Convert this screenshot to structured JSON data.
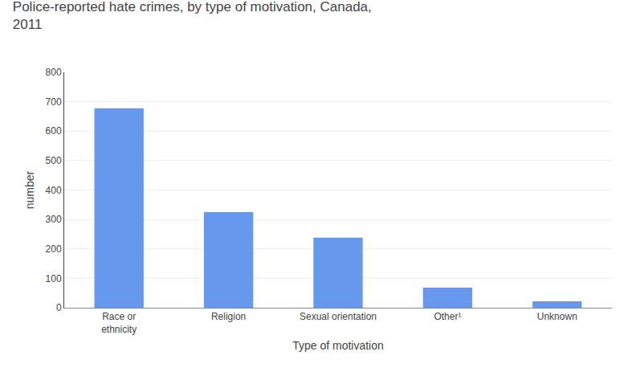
{
  "chart_data": {
    "type": "bar",
    "title": "Police-reported hate crimes, by type of motivation, Canada,\n2011",
    "xlabel": "Type of motivation",
    "ylabel": "number",
    "categories": [
      "Race or\nethnicity",
      "Religion",
      "Sexual orientation",
      "Other¹",
      "Unknown"
    ],
    "values": [
      678,
      325,
      238,
      68,
      22
    ],
    "color": "#6699ee",
    "ylim": [
      0,
      800
    ],
    "yticks": [
      0,
      100,
      200,
      300,
      400,
      500,
      600,
      700,
      800
    ],
    "grid": true
  }
}
